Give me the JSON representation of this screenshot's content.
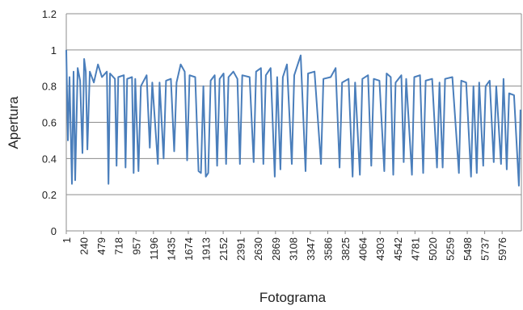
{
  "chart_data": {
    "type": "line",
    "x_label": "Fotograma",
    "y_label": "Apertura",
    "xlim": [
      1,
      6240
    ],
    "ylim": [
      0,
      1.2
    ],
    "xticks": [
      1,
      240,
      479,
      718,
      957,
      1196,
      1435,
      1674,
      1913,
      2152,
      2391,
      2630,
      2869,
      3108,
      3347,
      3586,
      3825,
      4064,
      4303,
      4542,
      4781,
      5020,
      5259,
      5498,
      5737,
      5976
    ],
    "yticks": [
      0,
      0.2,
      0.4,
      0.6,
      0.8,
      1,
      1.2
    ],
    "grid": true,
    "x": [
      1,
      23,
      45,
      79,
      101,
      123,
      157,
      190,
      223,
      246,
      268,
      290,
      323,
      379,
      435,
      490,
      557,
      579,
      601,
      668,
      690,
      713,
      790,
      813,
      835,
      902,
      924,
      946,
      991,
      1024,
      1102,
      1146,
      1180,
      1257,
      1280,
      1335,
      1369,
      1435,
      1480,
      1513,
      1569,
      1624,
      1658,
      1691,
      1769,
      1814,
      1847,
      1880,
      1914,
      1947,
      1980,
      2036,
      2069,
      2103,
      2158,
      2192,
      2225,
      2292,
      2347,
      2381,
      2414,
      2514,
      2570,
      2603,
      2670,
      2703,
      2737,
      2803,
      2859,
      2892,
      2937,
      2970,
      3026,
      3093,
      3126,
      3215,
      3281,
      3315,
      3404,
      3493,
      3526,
      3626,
      3693,
      3748,
      3782,
      3871,
      3926,
      3960,
      4026,
      4060,
      4138,
      4182,
      4216,
      4294,
      4360,
      4393,
      4449,
      4483,
      4516,
      4594,
      4627,
      4661,
      4739,
      4772,
      4850,
      4894,
      4928,
      5017,
      5083,
      5117,
      5161,
      5194,
      5294,
      5383,
      5416,
      5483,
      5550,
      5583,
      5628,
      5661,
      5717,
      5750,
      5806,
      5861,
      5895,
      5961,
      5995,
      6039,
      6072,
      6139,
      6172,
      6206,
      6228
    ],
    "series": [
      {
        "name": "Apertura",
        "color": "#4a7ebb",
        "values": [
          1.0,
          0.5,
          0.85,
          0.26,
          0.88,
          0.28,
          0.9,
          0.83,
          0.43,
          0.95,
          0.88,
          0.45,
          0.88,
          0.82,
          0.92,
          0.85,
          0.88,
          0.26,
          0.87,
          0.84,
          0.36,
          0.85,
          0.86,
          0.35,
          0.84,
          0.85,
          0.32,
          0.84,
          0.33,
          0.8,
          0.86,
          0.46,
          0.82,
          0.37,
          0.82,
          0.4,
          0.83,
          0.84,
          0.44,
          0.82,
          0.92,
          0.88,
          0.39,
          0.86,
          0.85,
          0.33,
          0.32,
          0.8,
          0.3,
          0.32,
          0.83,
          0.86,
          0.36,
          0.84,
          0.87,
          0.37,
          0.85,
          0.88,
          0.84,
          0.37,
          0.86,
          0.85,
          0.38,
          0.88,
          0.9,
          0.37,
          0.86,
          0.9,
          0.3,
          0.85,
          0.34,
          0.85,
          0.92,
          0.37,
          0.86,
          0.97,
          0.33,
          0.87,
          0.88,
          0.37,
          0.84,
          0.85,
          0.9,
          0.35,
          0.82,
          0.84,
          0.3,
          0.82,
          0.31,
          0.84,
          0.86,
          0.36,
          0.84,
          0.83,
          0.33,
          0.87,
          0.85,
          0.31,
          0.82,
          0.86,
          0.38,
          0.84,
          0.31,
          0.85,
          0.86,
          0.32,
          0.83,
          0.84,
          0.35,
          0.82,
          0.35,
          0.84,
          0.85,
          0.32,
          0.83,
          0.82,
          0.3,
          0.8,
          0.32,
          0.82,
          0.36,
          0.8,
          0.83,
          0.38,
          0.8,
          0.37,
          0.84,
          0.34,
          0.76,
          0.75,
          0.5,
          0.25,
          0.67
        ]
      }
    ]
  }
}
